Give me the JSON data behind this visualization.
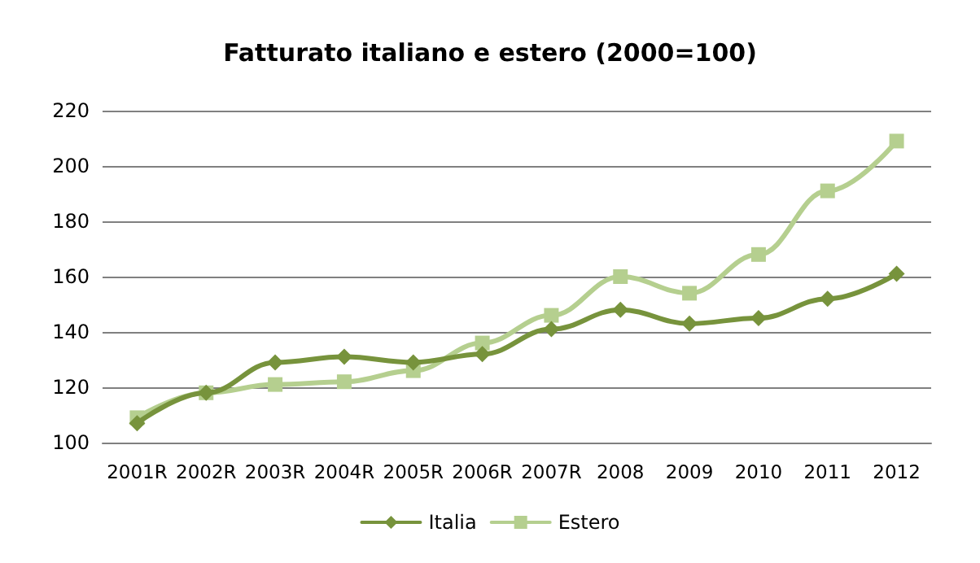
{
  "chart_data": {
    "type": "line",
    "title": "Fatturato italiano e estero (2000=100)",
    "categories": [
      "2001R",
      "2002R",
      "2003R",
      "2004R",
      "2005R",
      "2006R",
      "2007R",
      "2008",
      "2009",
      "2010",
      "2011",
      "2012"
    ],
    "series": [
      {
        "name": "Italia",
        "color": "#77933c",
        "marker": "diamond",
        "values": [
          107,
          118,
          129,
          131,
          129,
          132,
          141,
          148,
          143,
          145,
          152,
          161
        ]
      },
      {
        "name": "Estero",
        "color": "#b5cf8f",
        "marker": "square",
        "values": [
          109,
          118,
          121,
          122,
          126,
          136,
          146,
          160,
          154,
          168,
          191,
          209
        ]
      }
    ],
    "ylim": [
      100,
      220
    ],
    "yticks": [
      100,
      120,
      140,
      160,
      180,
      200,
      220
    ],
    "grid": "y",
    "legend": "bottom",
    "line_style": "solid"
  }
}
